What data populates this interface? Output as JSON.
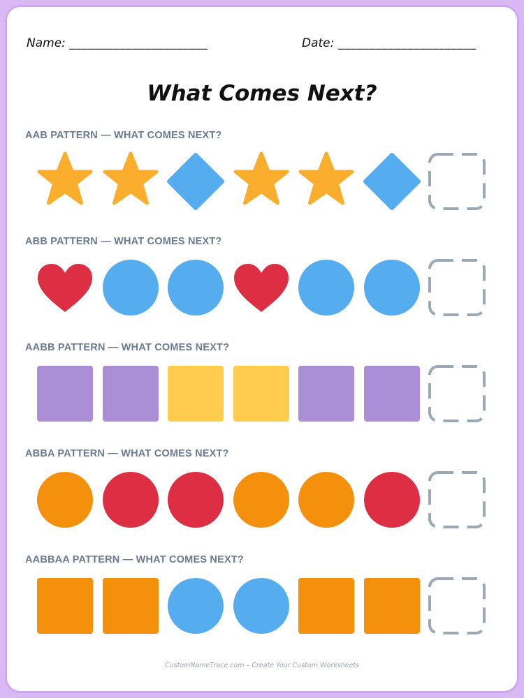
{
  "header": {
    "name_label": "Name:",
    "name_line": "______________________",
    "date_label": "Date:",
    "date_line": "______________________"
  },
  "title": "What Comes Next?",
  "colors": {
    "star": "#fbae2d",
    "diamond": "#55acee",
    "heart": "#dd2e44",
    "blue": "#55acee",
    "purple": "#aa8ed6",
    "yellow": "#ffcc4d",
    "orange": "#f4900c",
    "red": "#dd2e44",
    "blank_border": "#9aa8b8"
  },
  "rows": [
    {
      "label": "AAB PATTERN — WHAT COMES NEXT?",
      "items": [
        {
          "shape": "star-icon",
          "color": "#fbae2d"
        },
        {
          "shape": "star-icon",
          "color": "#fbae2d"
        },
        {
          "shape": "diamond-icon",
          "color": "#55acee"
        },
        {
          "shape": "star-icon",
          "color": "#fbae2d"
        },
        {
          "shape": "star-icon",
          "color": "#fbae2d"
        },
        {
          "shape": "diamond-icon",
          "color": "#55acee"
        },
        {
          "shape": "blank-box",
          "color": "#9aa8b8"
        }
      ]
    },
    {
      "label": "ABB PATTERN — WHAT COMES NEXT?",
      "items": [
        {
          "shape": "heart-icon",
          "color": "#dd2e44"
        },
        {
          "shape": "circle-icon",
          "color": "#55acee"
        },
        {
          "shape": "circle-icon",
          "color": "#55acee"
        },
        {
          "shape": "heart-icon",
          "color": "#dd2e44"
        },
        {
          "shape": "circle-icon",
          "color": "#55acee"
        },
        {
          "shape": "circle-icon",
          "color": "#55acee"
        },
        {
          "shape": "blank-box",
          "color": "#9aa8b8"
        }
      ]
    },
    {
      "label": "AABB PATTERN — WHAT COMES NEXT?",
      "items": [
        {
          "shape": "square-icon",
          "color": "#aa8ed6"
        },
        {
          "shape": "square-icon",
          "color": "#aa8ed6"
        },
        {
          "shape": "square-icon",
          "color": "#ffcc4d"
        },
        {
          "shape": "square-icon",
          "color": "#ffcc4d"
        },
        {
          "shape": "square-icon",
          "color": "#aa8ed6"
        },
        {
          "shape": "square-icon",
          "color": "#aa8ed6"
        },
        {
          "shape": "blank-box",
          "color": "#9aa8b8"
        }
      ]
    },
    {
      "label": "ABBA PATTERN — WHAT COMES NEXT?",
      "items": [
        {
          "shape": "circle-icon",
          "color": "#f4900c"
        },
        {
          "shape": "circle-icon",
          "color": "#dd2e44"
        },
        {
          "shape": "circle-icon",
          "color": "#dd2e44"
        },
        {
          "shape": "circle-icon",
          "color": "#f4900c"
        },
        {
          "shape": "circle-icon",
          "color": "#f4900c"
        },
        {
          "shape": "circle-icon",
          "color": "#dd2e44"
        },
        {
          "shape": "blank-box",
          "color": "#9aa8b8"
        }
      ]
    },
    {
      "label": "AABBAA PATTERN — WHAT COMES NEXT?",
      "items": [
        {
          "shape": "square-icon",
          "color": "#f4900c"
        },
        {
          "shape": "square-icon",
          "color": "#f4900c"
        },
        {
          "shape": "circle-icon",
          "color": "#55acee"
        },
        {
          "shape": "circle-icon",
          "color": "#55acee"
        },
        {
          "shape": "square-icon",
          "color": "#f4900c"
        },
        {
          "shape": "square-icon",
          "color": "#f4900c"
        },
        {
          "shape": "blank-box",
          "color": "#9aa8b8"
        }
      ]
    }
  ],
  "footer": "CustomNameTrace.com – Create Your Custom Worksheets"
}
